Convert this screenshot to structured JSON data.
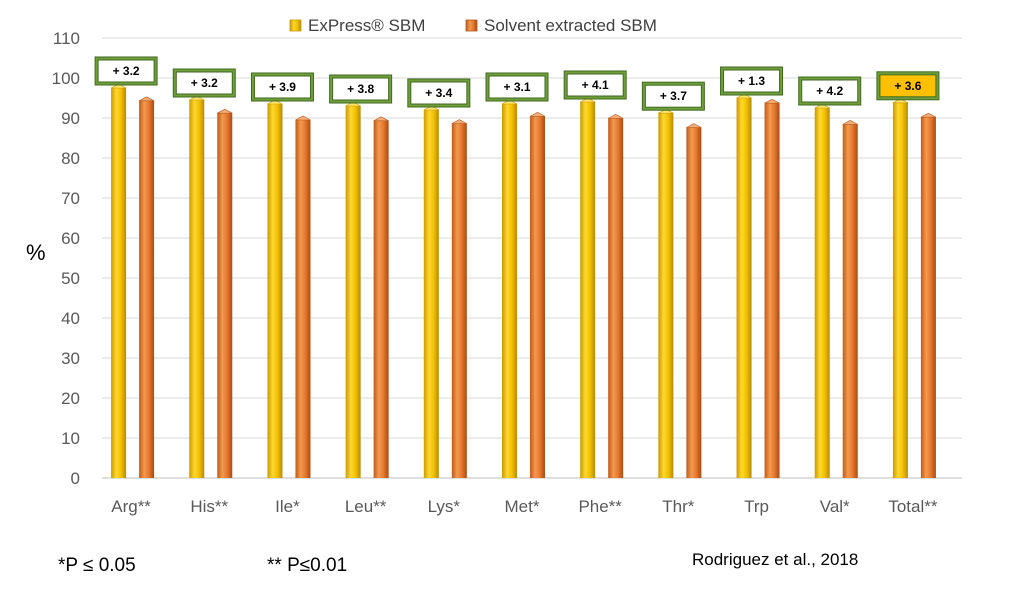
{
  "chart_data": {
    "type": "bar",
    "categories": [
      "Arg**",
      "His**",
      "Ile*",
      "Leu**",
      "Lys*",
      "Met*",
      "Phe**",
      "Thr*",
      "Trp",
      "Val*",
      "Total**"
    ],
    "series": [
      {
        "name": "ExPress® SBM",
        "color": "#F2C200",
        "values": [
          97.5,
          94.5,
          93.5,
          93.0,
          92.0,
          93.5,
          94.0,
          91.2,
          95.0,
          92.5,
          93.8
        ]
      },
      {
        "name": "Solvent extracted SBM",
        "color": "#E87830",
        "values": [
          94.3,
          91.2,
          89.5,
          89.3,
          88.6,
          90.4,
          89.9,
          87.6,
          93.7,
          88.4,
          90.2
        ]
      }
    ],
    "differences": [
      "+ 3.2",
      "+ 3.2",
      "+ 3.9",
      "+ 3.8",
      "+ 3.4",
      "+ 3.1",
      "+ 4.1",
      "+ 3.7",
      "+ 1.3",
      "+ 4.2",
      "+ 3.6"
    ],
    "highlight_index": 10,
    "ylim": [
      0,
      110
    ],
    "yticks": [
      0,
      10,
      20,
      30,
      40,
      50,
      60,
      70,
      80,
      90,
      100,
      110
    ],
    "ylabel": "%",
    "xlabel": "",
    "title": "",
    "grid": true,
    "legend_position": "top"
  },
  "notes": {
    "p05": "*P ≤ 0.05",
    "p01": "** P≤0.01",
    "source": "Rodriguez et al., 2018"
  }
}
